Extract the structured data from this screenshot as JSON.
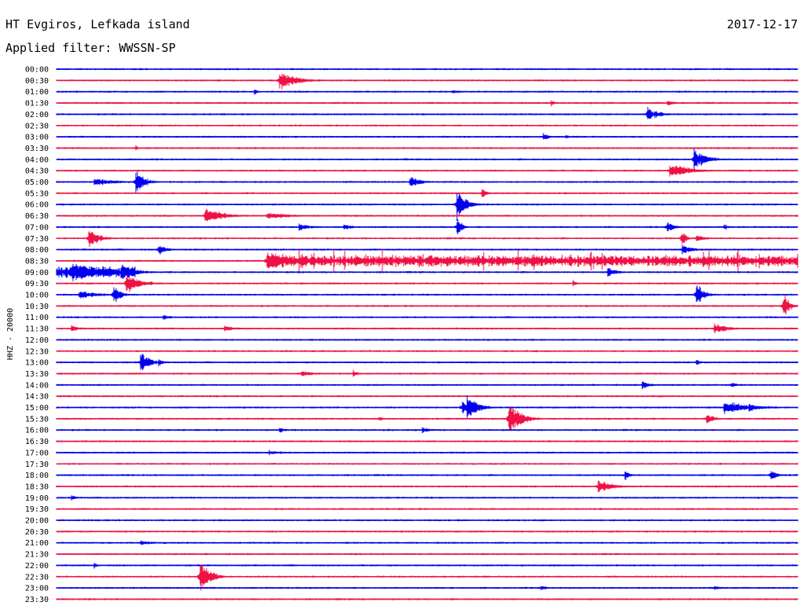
{
  "header": {
    "station": "HT Evgiros, Lefkada island",
    "date": "2017-12-17",
    "filter": "Applied filter: WWSSN-SP"
  },
  "colors": {
    "odd_trace": "#0000ee",
    "even_trace": "#ee1144"
  },
  "chart_data": {
    "type": "line",
    "title": "HT Evgiros, Lefkada island",
    "subtitle": "Applied filter: WWSSN-SP",
    "ylabel": "HHZ - 20000",
    "row_labels": [
      "00:00",
      "00:30",
      "01:00",
      "01:30",
      "02:00",
      "02:30",
      "03:00",
      "03:30",
      "04:00",
      "04:30",
      "05:00",
      "05:30",
      "06:00",
      "06:30",
      "07:00",
      "07:30",
      "08:00",
      "08:30",
      "09:00",
      "09:30",
      "10:00",
      "10:30",
      "11:00",
      "11:30",
      "12:00",
      "12:30",
      "13:00",
      "13:30",
      "14:00",
      "14:30",
      "15:00",
      "15:30",
      "16:00",
      "16:30",
      "17:00",
      "17:30",
      "18:00",
      "18:30",
      "19:00",
      "19:30",
      "20:00",
      "20:30",
      "21:00",
      "21:30",
      "22:00",
      "22:30",
      "23:00",
      "23:30"
    ],
    "trace_span_minutes": 30,
    "events": [
      {
        "row": 1,
        "minute": 9.0,
        "amp": 14,
        "dur": 1.2
      },
      {
        "row": 2,
        "minute": 8.0,
        "amp": 5,
        "dur": 0.3
      },
      {
        "row": 2,
        "minute": 16.0,
        "amp": 3,
        "dur": 1.0
      },
      {
        "row": 3,
        "minute": 20.0,
        "amp": 6,
        "dur": 0.3
      },
      {
        "row": 3,
        "minute": 24.7,
        "amp": 5,
        "dur": 0.5
      },
      {
        "row": 4,
        "minute": 23.9,
        "amp": 14,
        "dur": 0.4
      },
      {
        "row": 4,
        "minute": 24.2,
        "amp": 6,
        "dur": 0.6
      },
      {
        "row": 6,
        "minute": 19.7,
        "amp": 8,
        "dur": 0.3
      },
      {
        "row": 6,
        "minute": 20.6,
        "amp": 4,
        "dur": 0.3
      },
      {
        "row": 7,
        "minute": 3.2,
        "amp": 8,
        "dur": 0.1
      },
      {
        "row": 8,
        "minute": 25.8,
        "amp": 16,
        "dur": 0.8
      },
      {
        "row": 9,
        "minute": 24.8,
        "amp": 10,
        "dur": 1.4
      },
      {
        "row": 10,
        "minute": 1.5,
        "amp": 6,
        "dur": 1.5
      },
      {
        "row": 10,
        "minute": 3.2,
        "amp": 18,
        "dur": 0.6
      },
      {
        "row": 10,
        "minute": 14.3,
        "amp": 8,
        "dur": 0.8
      },
      {
        "row": 11,
        "minute": 17.2,
        "amp": 10,
        "dur": 0.3
      },
      {
        "row": 12,
        "minute": 16.2,
        "amp": 22,
        "dur": 0.6
      },
      {
        "row": 13,
        "minute": 6.0,
        "amp": 12,
        "dur": 1.2
      },
      {
        "row": 13,
        "minute": 8.5,
        "amp": 5,
        "dur": 1.8
      },
      {
        "row": 14,
        "minute": 9.8,
        "amp": 6,
        "dur": 0.8
      },
      {
        "row": 14,
        "minute": 11.6,
        "amp": 5,
        "dur": 0.6
      },
      {
        "row": 14,
        "minute": 16.2,
        "amp": 16,
        "dur": 0.3
      },
      {
        "row": 14,
        "minute": 24.7,
        "amp": 10,
        "dur": 0.5
      },
      {
        "row": 14,
        "minute": 27.0,
        "amp": 5,
        "dur": 0.4
      },
      {
        "row": 15,
        "minute": 1.3,
        "amp": 14,
        "dur": 0.7
      },
      {
        "row": 15,
        "minute": 25.3,
        "amp": 14,
        "dur": 0.3
      },
      {
        "row": 15,
        "minute": 25.9,
        "amp": 5,
        "dur": 0.8
      },
      {
        "row": 16,
        "minute": 4.1,
        "amp": 8,
        "dur": 0.6
      },
      {
        "row": 16,
        "minute": 25.3,
        "amp": 8,
        "dur": 0.7
      },
      {
        "row": 17,
        "minute": 8.5,
        "amp": 16,
        "dur": 2.0
      },
      {
        "row": 18,
        "minute": 0.6,
        "amp": 14,
        "dur": 2.2
      },
      {
        "row": 18,
        "minute": 2.6,
        "amp": 12,
        "dur": 1.0
      },
      {
        "row": 18,
        "minute": 22.3,
        "amp": 8,
        "dur": 0.6
      },
      {
        "row": 19,
        "minute": 2.8,
        "amp": 14,
        "dur": 1.0
      },
      {
        "row": 19,
        "minute": 20.9,
        "amp": 5,
        "dur": 0.3
      },
      {
        "row": 20,
        "minute": 0.9,
        "amp": 6,
        "dur": 1.5
      },
      {
        "row": 20,
        "minute": 2.3,
        "amp": 14,
        "dur": 0.5
      },
      {
        "row": 20,
        "minute": 25.9,
        "amp": 18,
        "dur": 0.5
      },
      {
        "row": 21,
        "minute": 29.4,
        "amp": 20,
        "dur": 0.4
      },
      {
        "row": 22,
        "minute": 4.3,
        "amp": 4,
        "dur": 0.7
      },
      {
        "row": 23,
        "minute": 0.6,
        "amp": 5,
        "dur": 0.6
      },
      {
        "row": 23,
        "minute": 6.8,
        "amp": 4,
        "dur": 1.0
      },
      {
        "row": 23,
        "minute": 26.6,
        "amp": 8,
        "dur": 1.0
      },
      {
        "row": 26,
        "minute": 3.4,
        "amp": 14,
        "dur": 0.7
      },
      {
        "row": 26,
        "minute": 4.1,
        "amp": 8,
        "dur": 0.3
      },
      {
        "row": 26,
        "minute": 25.9,
        "amp": 5,
        "dur": 0.3
      },
      {
        "row": 27,
        "minute": 9.9,
        "amp": 4,
        "dur": 1.2
      },
      {
        "row": 27,
        "minute": 12.0,
        "amp": 6,
        "dur": 0.3
      },
      {
        "row": 28,
        "minute": 23.7,
        "amp": 6,
        "dur": 0.6
      },
      {
        "row": 28,
        "minute": 27.3,
        "amp": 4,
        "dur": 0.6
      },
      {
        "row": 30,
        "minute": 16.6,
        "amp": 20,
        "dur": 0.7
      },
      {
        "row": 30,
        "minute": 16.4,
        "amp": 14,
        "dur": 0.3
      },
      {
        "row": 30,
        "minute": 27.0,
        "amp": 10,
        "dur": 1.8
      },
      {
        "row": 30,
        "minute": 28.0,
        "amp": 8,
        "dur": 0.6
      },
      {
        "row": 31,
        "minute": 18.3,
        "amp": 24,
        "dur": 0.8
      },
      {
        "row": 31,
        "minute": 13.0,
        "amp": 5,
        "dur": 0.4
      },
      {
        "row": 31,
        "minute": 26.3,
        "amp": 10,
        "dur": 0.5
      },
      {
        "row": 32,
        "minute": 9.0,
        "amp": 5,
        "dur": 0.4
      },
      {
        "row": 32,
        "minute": 14.8,
        "amp": 5,
        "dur": 0.6
      },
      {
        "row": 34,
        "minute": 8.6,
        "amp": 4,
        "dur": 1.0
      },
      {
        "row": 36,
        "minute": 23.0,
        "amp": 8,
        "dur": 0.3
      },
      {
        "row": 36,
        "minute": 28.9,
        "amp": 10,
        "dur": 0.4
      },
      {
        "row": 37,
        "minute": 21.9,
        "amp": 10,
        "dur": 1.0
      },
      {
        "row": 38,
        "minute": 0.6,
        "amp": 5,
        "dur": 0.3
      },
      {
        "row": 42,
        "minute": 3.4,
        "amp": 4,
        "dur": 0.8
      },
      {
        "row": 44,
        "minute": 1.5,
        "amp": 5,
        "dur": 0.3
      },
      {
        "row": 45,
        "minute": 5.8,
        "amp": 26,
        "dur": 0.6
      },
      {
        "row": 46,
        "minute": 19.6,
        "amp": 4,
        "dur": 0.5
      },
      {
        "row": 46,
        "minute": 26.6,
        "amp": 4,
        "dur": 0.4
      }
    ],
    "noise_bursts": [
      {
        "row": 17,
        "from": 8.5,
        "to": 30,
        "amp": 8
      },
      {
        "row": 18,
        "from": 0,
        "to": 3.2,
        "amp": 8
      }
    ]
  }
}
